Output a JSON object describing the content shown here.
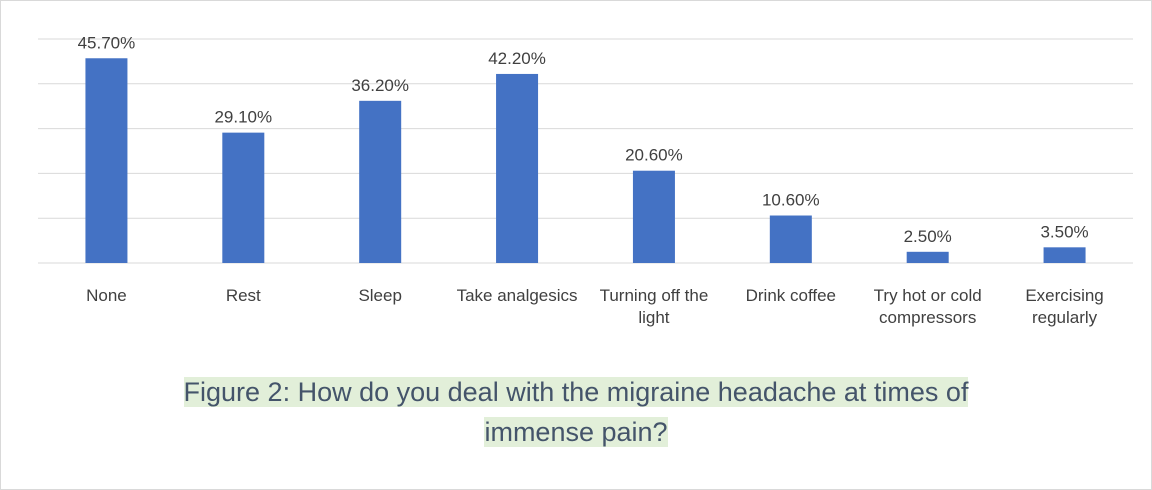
{
  "chart_data": {
    "type": "bar",
    "categories": [
      "None",
      "Rest",
      "Sleep",
      "Take analgesics",
      "Turning off the light",
      "Drink coffee",
      "Try hot or cold compressors",
      "Exercising regularly"
    ],
    "values": [
      45.7,
      29.1,
      36.2,
      42.2,
      20.6,
      10.6,
      2.5,
      3.5
    ],
    "value_labels": [
      "45.70%",
      "29.10%",
      "36.20%",
      "42.20%",
      "20.60%",
      "10.60%",
      "2.50%",
      "3.50%"
    ],
    "color": "#4472c4",
    "ylim": [
      0,
      50
    ],
    "yticks": [
      0,
      10,
      20,
      30,
      40,
      50
    ],
    "grid": true,
    "caption": "Figure 2: How do you deal with the migraine headache at times of immense pain?"
  }
}
